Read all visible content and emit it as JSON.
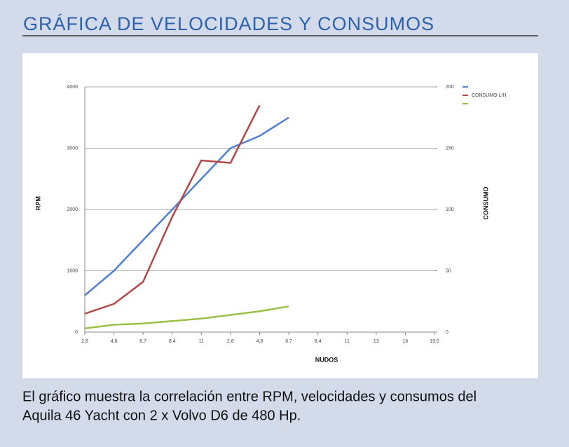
{
  "header": {
    "title": "GRÁFICA DE VELOCIDADES Y CONSUMOS"
  },
  "chart_data": {
    "type": "line",
    "categories": [
      "2,8",
      "4,8",
      "6,7",
      "8,4",
      "11",
      "2,8",
      "4,8",
      "6,7",
      "8,4",
      "11",
      "13",
      "16",
      "19,5"
    ],
    "xlabel": "NUDOS",
    "ylabel": "RPM",
    "y2label": "CONSUMO",
    "ylim": [
      0,
      4000
    ],
    "yticks": [
      0,
      1000,
      2000,
      3000,
      4000
    ],
    "y2lim": [
      0,
      200
    ],
    "y2ticks": [
      0,
      50,
      100,
      150,
      200
    ],
    "grid": true,
    "legend": "upper right",
    "series": [
      {
        "color": "#4f7fd0",
        "values": [
          600,
          1000,
          1500,
          2000,
          2500,
          3000,
          3200,
          3500,
          null,
          null,
          null,
          null,
          null
        ]
      },
      {
        "name": "CONSUMO L/H",
        "color": "#b34848",
        "axis": "y2",
        "values": [
          15,
          23,
          41,
          94,
          140,
          138,
          185,
          null,
          null,
          null,
          null,
          null,
          null
        ]
      },
      {
        "color": "#9cc046",
        "axis": "y2",
        "values": [
          3,
          6,
          7,
          9,
          11,
          14,
          17,
          21,
          null,
          null,
          null,
          null,
          null
        ]
      }
    ]
  },
  "caption": [
    "El gráfico muestra la correlación entre RPM, velocidades y consumos del",
    "Aquila 46 Yacht con 2 x Volvo D6 de 480 Hp."
  ]
}
